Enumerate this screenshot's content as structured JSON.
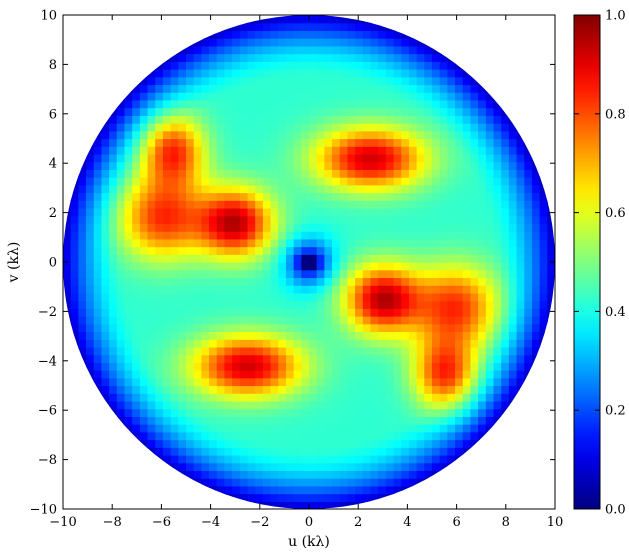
{
  "chart_data": {
    "type": "heatmap",
    "title": "",
    "xlabel": "u (kλ)",
    "ylabel": "v (kλ)",
    "xlim": [
      -10,
      10
    ],
    "ylim": [
      -10,
      10
    ],
    "x_ticks": [
      "−10",
      "−8",
      "−6",
      "−4",
      "−2",
      "0",
      "2",
      "4",
      "6",
      "8",
      "10"
    ],
    "y_ticks": [
      "−10",
      "−8",
      "−6",
      "−4",
      "−2",
      "0",
      "2",
      "4",
      "6",
      "8",
      "10"
    ],
    "x_tick_values": [
      -10,
      -8,
      -6,
      -4,
      -2,
      0,
      2,
      4,
      6,
      8,
      10
    ],
    "y_tick_values": [
      -10,
      -8,
      -6,
      -4,
      -2,
      0,
      2,
      4,
      6,
      8,
      10
    ],
    "grid": false,
    "colormap": "jet",
    "colorbar": {
      "range": [
        0.0,
        1.0
      ],
      "ticks": [
        "0.0",
        "0.2",
        "0.4",
        "0.6",
        "0.8",
        "1.0"
      ],
      "tick_values": [
        0.0,
        0.2,
        0.4,
        0.6,
        0.8,
        1.0
      ]
    },
    "mask": "circle",
    "mask_radius": 10,
    "background_value": 0.42,
    "features": [
      {
        "u": 2.5,
        "v": 4.2,
        "su": 1.6,
        "sv": 0.9,
        "amp": 0.5
      },
      {
        "u": -5.5,
        "v": 4.5,
        "su": 0.9,
        "sv": 1.0,
        "amp": 0.4
      },
      {
        "u": -3.0,
        "v": 1.6,
        "su": 1.1,
        "sv": 1.0,
        "amp": 0.52
      },
      {
        "u": -6.0,
        "v": 1.8,
        "su": 1.2,
        "sv": 1.2,
        "amp": 0.4
      },
      {
        "u": 3.0,
        "v": -1.5,
        "su": 1.1,
        "sv": 1.0,
        "amp": 0.52
      },
      {
        "u": 6.0,
        "v": -1.8,
        "su": 1.2,
        "sv": 1.2,
        "amp": 0.4
      },
      {
        "u": -2.5,
        "v": -4.2,
        "su": 1.6,
        "sv": 0.9,
        "amp": 0.5
      },
      {
        "u": 5.5,
        "v": -4.5,
        "su": 0.9,
        "sv": 1.0,
        "amp": 0.4
      },
      {
        "u": 0.0,
        "v": 0.0,
        "su": 0.7,
        "sv": 0.7,
        "amp": -0.3
      },
      {
        "u": 0.0,
        "v": 0.0,
        "su": 0.25,
        "sv": 0.2,
        "amp": -0.25
      }
    ],
    "rim_falloff": [
      7.5,
      10,
      0.35
    ]
  },
  "colors": {
    "axis": "#000000",
    "jet_stops": [
      "#00007f",
      "#0000ff",
      "#007fff",
      "#00ffff",
      "#7fff7f",
      "#ffff00",
      "#ff7f00",
      "#ff0000",
      "#7f0000"
    ]
  }
}
